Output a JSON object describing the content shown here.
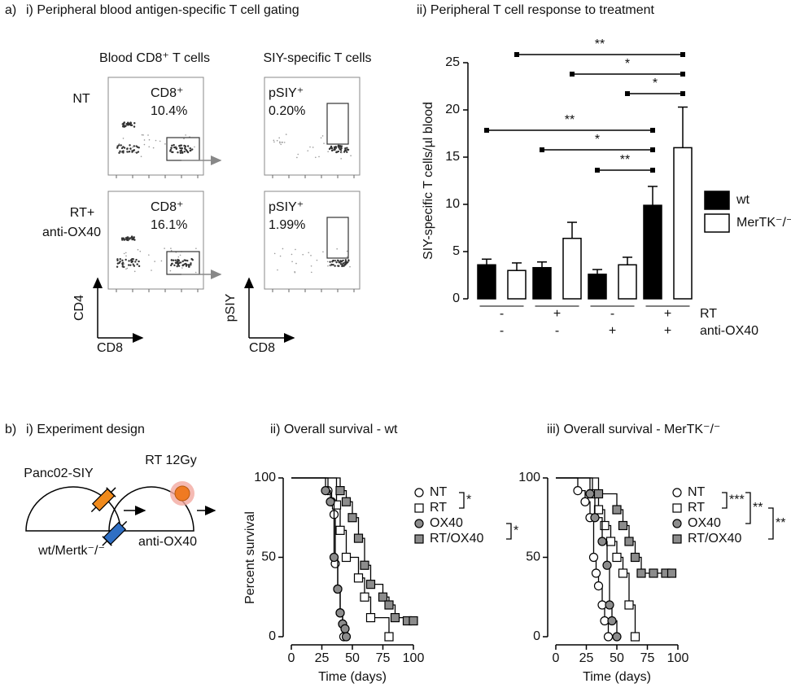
{
  "panel_a": {
    "label": "a)",
    "gating": {
      "title": "i) Peripheral blood antigen-specific T cell gating",
      "col_titles": [
        "Blood CD8⁺ T cells",
        "SIY-specific T cells"
      ],
      "row_labels": [
        [
          "NT"
        ],
        [
          "RT+",
          "anti-OX40"
        ]
      ],
      "gates": [
        [
          "CD8⁺",
          "10.4%"
        ],
        [
          "pSIY⁺",
          "0.20%"
        ],
        [
          "CD8⁺",
          "16.1%"
        ],
        [
          "pSIY⁺",
          "1.99%"
        ]
      ],
      "axes": [
        {
          "y": "CD4",
          "x": "CD8"
        },
        {
          "y": "pSIY",
          "x": "CD8"
        }
      ]
    }
  },
  "panel_b": {
    "label": "b)",
    "design": {
      "title": "i) Experiment design",
      "labels": [
        "Panc02-SIY",
        "wt/Mertk⁻/⁻",
        "RT 12Gy",
        "anti-OX40"
      ]
    }
  },
  "chart_data": [
    {
      "type": "bar",
      "title": "ii) Peripheral T cell response to treatment",
      "y_label": "SIY-specific T cells/µl blood",
      "ylim": [
        0,
        25
      ],
      "yticks": [
        0,
        5,
        10,
        15,
        20,
        25
      ],
      "condition_rows": [
        {
          "name": "RT",
          "values": [
            "-",
            "+",
            "-",
            "+"
          ]
        },
        {
          "name": "anti-OX40",
          "values": [
            "-",
            "-",
            "+",
            "+"
          ]
        }
      ],
      "series": [
        {
          "name": "wt",
          "color": "#000000",
          "values": [
            3.6,
            3.3,
            2.6,
            9.9
          ],
          "errors": [
            0.6,
            0.6,
            0.5,
            2.0
          ]
        },
        {
          "name": "MerTK⁻/⁻",
          "color": "#ffffff",
          "values": [
            3.0,
            6.4,
            3.6,
            16.0
          ],
          "errors": [
            0.8,
            1.7,
            0.8,
            4.3
          ]
        }
      ],
      "annotations": [
        "**",
        "*",
        "*",
        "**",
        "*",
        "**"
      ]
    },
    {
      "type": "step",
      "title": "ii) Overall survival - wt",
      "x_label": "Time (days)",
      "y_label": "Percent survival",
      "xlim": [
        0,
        100
      ],
      "xticks": [
        0,
        25,
        50,
        75,
        100
      ],
      "ylim": [
        0,
        100
      ],
      "yticks": [
        0,
        50,
        100
      ],
      "series": [
        {
          "name": "NT",
          "marker": "circle",
          "color": "#ffffff",
          "x": [
            0,
            30,
            33,
            35,
            36,
            38,
            40,
            42,
            43
          ],
          "values": [
            100,
            92,
            85,
            77,
            46,
            30,
            15,
            8,
            0
          ]
        },
        {
          "name": "RT",
          "marker": "square",
          "color": "#ffffff",
          "x": [
            0,
            37,
            40,
            45,
            55,
            60,
            65,
            80
          ],
          "values": [
            100,
            83,
            67,
            50,
            37,
            25,
            12,
            0
          ]
        },
        {
          "name": "OX40",
          "marker": "circle",
          "color": "#8c8c8c",
          "x": [
            0,
            28,
            32,
            35,
            38,
            40,
            42,
            44,
            45
          ],
          "values": [
            100,
            92,
            85,
            50,
            30,
            15,
            8,
            5,
            0
          ]
        },
        {
          "name": "RT/OX40",
          "marker": "square",
          "color": "#8c8c8c",
          "x": [
            0,
            40,
            45,
            50,
            55,
            60,
            65,
            75,
            80,
            85,
            95,
            100
          ],
          "values": [
            100,
            92,
            85,
            75,
            62,
            45,
            33,
            25,
            20,
            12,
            10,
            10
          ]
        }
      ],
      "annotations": [
        "*",
        "*"
      ]
    },
    {
      "type": "step",
      "title": "iii) Overall survival - MerTK⁻/⁻",
      "x_label": "Time (days)",
      "xlim": [
        0,
        100
      ],
      "xticks": [
        0,
        25,
        50,
        75,
        100
      ],
      "ylim": [
        0,
        100
      ],
      "yticks": [
        0,
        50,
        100
      ],
      "series": [
        {
          "name": "NT",
          "marker": "circle",
          "color": "#ffffff",
          "x": [
            0,
            18,
            24,
            28,
            31,
            33,
            35,
            38,
            40,
            43
          ],
          "values": [
            100,
            92,
            85,
            75,
            50,
            40,
            32,
            20,
            10,
            0
          ]
        },
        {
          "name": "RT",
          "marker": "square",
          "color": "#ffffff",
          "x": [
            0,
            30,
            35,
            40,
            45,
            50,
            55,
            60,
            65
          ],
          "values": [
            100,
            90,
            80,
            70,
            60,
            50,
            40,
            20,
            0
          ]
        },
        {
          "name": "OX40",
          "marker": "circle",
          "color": "#8c8c8c",
          "x": [
            0,
            28,
            32,
            38,
            42,
            44,
            46,
            50
          ],
          "values": [
            100,
            90,
            75,
            60,
            45,
            20,
            10,
            0
          ]
        },
        {
          "name": "RT/OX40",
          "marker": "square",
          "color": "#8c8c8c",
          "x": [
            0,
            35,
            50,
            55,
            60,
            65,
            70,
            80,
            90,
            95
          ],
          "values": [
            100,
            90,
            80,
            70,
            60,
            50,
            40,
            40,
            40,
            40
          ]
        }
      ],
      "annotations": [
        "***",
        "**",
        "**"
      ]
    }
  ]
}
